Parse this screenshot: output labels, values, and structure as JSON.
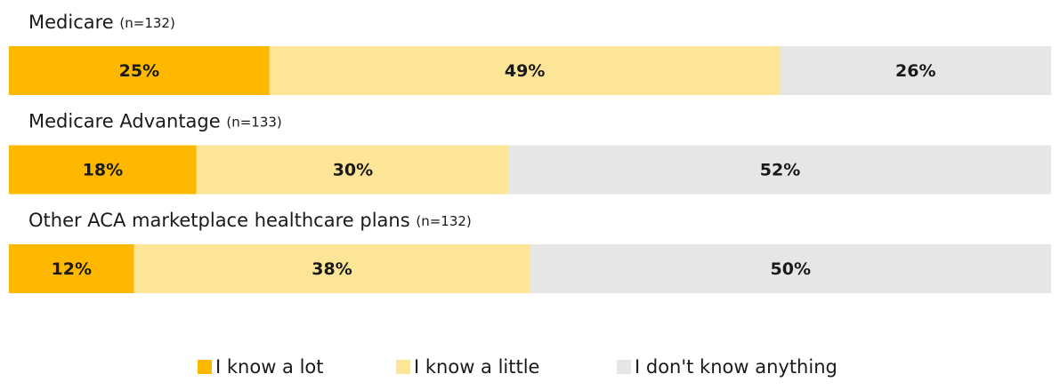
{
  "chart_data": {
    "type": "stacked_barh",
    "categories": [
      "Medicare",
      "Medicare Advantage",
      "Other ACA marketplace healthcare plans"
    ],
    "category_notes": [
      "(n=132)",
      "(n=133)",
      "(n=132)"
    ],
    "series": [
      {
        "name": "I know a lot",
        "color": "#FFB800",
        "values": [
          25,
          18,
          12
        ],
        "value_labels": [
          "25%",
          "18%",
          "12%"
        ]
      },
      {
        "name": "I know a little",
        "color": "#FDE597",
        "values": [
          49,
          30,
          38
        ],
        "value_labels": [
          "49%",
          "30%",
          "38%"
        ]
      },
      {
        "name": "I don't know anything",
        "color": "#E6E6E6",
        "values": [
          26,
          52,
          50
        ],
        "value_labels": [
          "26%",
          "52%",
          "50%"
        ]
      }
    ],
    "xlim": [
      0,
      100
    ],
    "legend": "bottom"
  }
}
